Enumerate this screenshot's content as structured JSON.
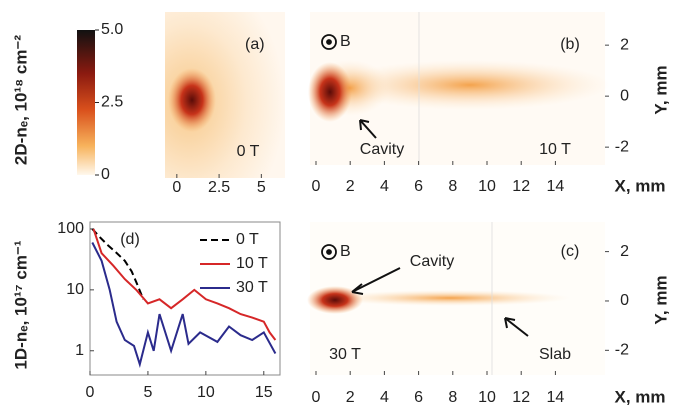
{
  "chart_data": [
    {
      "type": "colorbar",
      "ylabel": "2D-nₑ, 10¹⁸ cm⁻²",
      "ylim": [
        0,
        5
      ],
      "yticks": [
        0,
        2.5,
        {
          "value": 5,
          "label": "5.0"
        }
      ]
    },
    {
      "type": "image",
      "annotations": [
        "(a)",
        "0 T"
      ],
      "xlim": [
        -0.7,
        6.4
      ],
      "xticks": [
        0,
        2.5,
        5
      ]
    },
    {
      "type": "image",
      "annotations": [
        "B",
        "(b)",
        "Cavity",
        "10 T"
      ],
      "xlabel": "X, mm",
      "ylabel": "Y, mm",
      "xlim": [
        -0.35,
        16.9
      ],
      "xticks": [
        0,
        2,
        4,
        6,
        8,
        10,
        12,
        14
      ],
      "ylim": [
        -2.7,
        3.3
      ],
      "yticks": [
        -2,
        0,
        2
      ]
    },
    {
      "type": "image",
      "annotations": [
        "B",
        "Cavity",
        "(c)",
        "30 T",
        "Slab"
      ],
      "xlabel": "X, mm",
      "ylabel": "Y, mm",
      "xlim": [
        -0.35,
        16.9
      ],
      "xticks": [
        0,
        2,
        4,
        6,
        8,
        10,
        12,
        14
      ],
      "ylim": [
        -3,
        3.2
      ],
      "yticks": [
        -2,
        0,
        2
      ]
    },
    {
      "type": "line",
      "annotations": [
        "(d)"
      ],
      "ylabel": "1D-nₑ, 10¹⁷ cm⁻¹",
      "log_y": true,
      "xlim": [
        0,
        16.4
      ],
      "xticks": [
        0,
        5,
        10,
        15
      ],
      "ylim": [
        0.4,
        130
      ],
      "yticks": [
        1,
        10,
        100
      ],
      "series": [
        {
          "name": "0 T",
          "color": "#000000",
          "dashed": true,
          "x": [
            0.2,
            0.8,
            1.5,
            2.2,
            3,
            3.6,
            4.1,
            4.6
          ],
          "values": [
            100,
            75,
            55,
            42,
            30,
            20,
            12,
            7
          ]
        },
        {
          "name": "10 T",
          "color": "#d62728",
          "x": [
            0.3,
            1,
            2,
            3,
            4,
            5,
            6,
            7,
            8,
            9,
            10,
            11,
            12,
            13,
            14,
            15,
            15.5,
            16
          ],
          "values": [
            100,
            40,
            25,
            15,
            10,
            6,
            7,
            5,
            7,
            10,
            7,
            6,
            5,
            4,
            3.5,
            3,
            2,
            1.5
          ]
        },
        {
          "name": "30 T",
          "color": "#2b2b8c",
          "x": [
            0.2,
            1,
            1.7,
            2.3,
            3,
            3.8,
            4.3,
            5,
            5.5,
            6,
            7,
            8,
            8.5,
            9.5,
            11,
            12,
            13,
            14,
            15,
            16
          ],
          "values": [
            60,
            30,
            10,
            3,
            1.5,
            1.2,
            0.6,
            2,
            1,
            4,
            1,
            4,
            1.3,
            2,
            1.4,
            2.5,
            1.8,
            1.5,
            2,
            0.9
          ]
        }
      ]
    }
  ]
}
